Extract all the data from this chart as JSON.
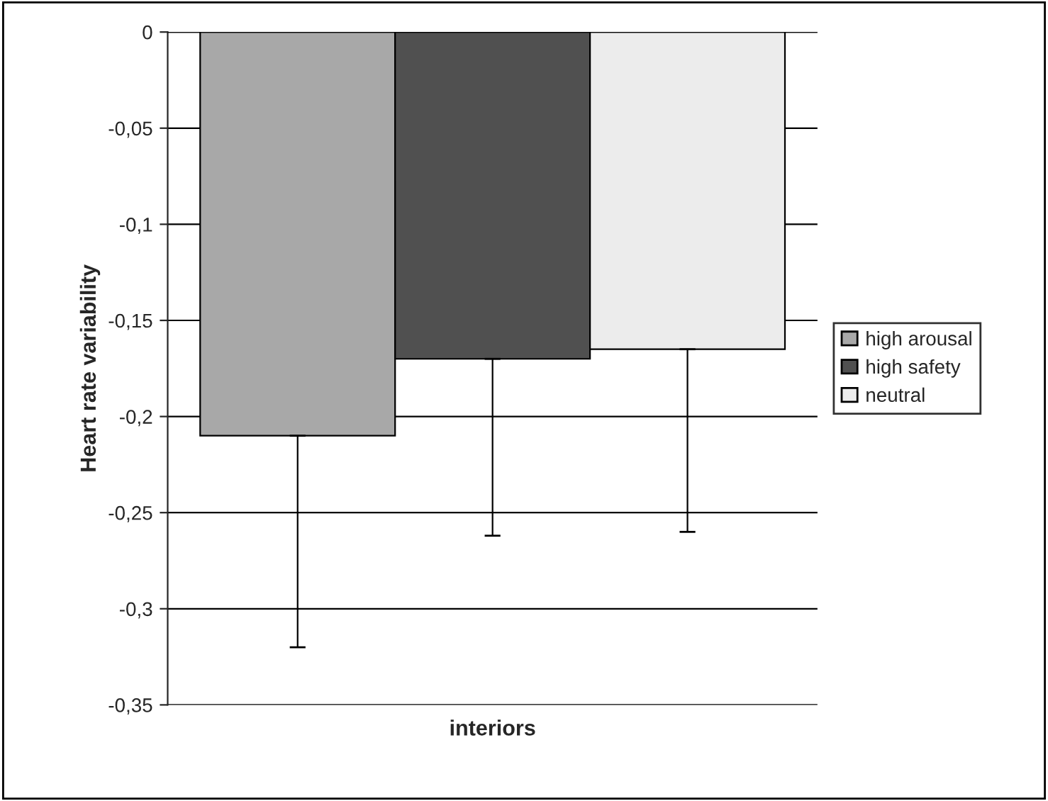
{
  "chart_data": {
    "type": "bar",
    "xlabel": "interiors",
    "ylabel": "Heart rate variability",
    "categories": [
      null
    ],
    "series": [
      {
        "name": "high arousal",
        "color": "#a8a8a8",
        "values": [
          -0.21
        ],
        "errors": [
          [
            -0.32,
            -0.21
          ]
        ]
      },
      {
        "name": "high safety",
        "color": "#505050",
        "values": [
          -0.17
        ],
        "errors": [
          [
            -0.262,
            -0.17
          ]
        ]
      },
      {
        "name": "neutral",
        "color": "#ececec",
        "values": [
          -0.165
        ],
        "errors": [
          [
            -0.26,
            -0.165
          ]
        ]
      }
    ],
    "ylim": [
      -0.35,
      0
    ],
    "yticks": [
      {
        "value": 0,
        "label": "0"
      },
      {
        "value": -0.05,
        "label": "-0,05"
      },
      {
        "value": -0.1,
        "label": "-0,1"
      },
      {
        "value": -0.15,
        "label": "-0,15"
      },
      {
        "value": -0.2,
        "label": "-0,2"
      },
      {
        "value": -0.25,
        "label": "-0,25"
      },
      {
        "value": -0.3,
        "label": "-0,3"
      },
      {
        "value": -0.35,
        "label": "-0,35"
      }
    ],
    "grid": "y",
    "legend": "right"
  }
}
